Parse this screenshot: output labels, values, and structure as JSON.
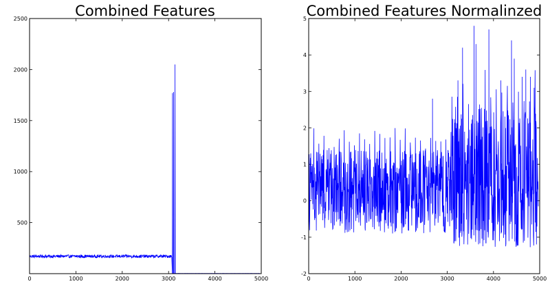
{
  "chart_data": [
    {
      "type": "line",
      "title": "Combined Features",
      "xlabel": "",
      "ylabel": "",
      "xlim": [
        0,
        5000
      ],
      "ylim": [
        0,
        2500
      ],
      "xticks": [
        "0",
        "1000",
        "2000",
        "3000",
        "4000",
        "5000"
      ],
      "yticks": [
        "500",
        "1000",
        "1500",
        "2000",
        "2500"
      ],
      "grid": false,
      "color": "#0000ff",
      "series": [
        {
          "description": "~5000 feature values; ~170 (range ~120-200) for x 0-3070, three spikes near x 3080-3150 (~1770, ~1780, ~2050), then ~0 up to x 5000",
          "segments": [
            {
              "x_start": 0,
              "x_end": 3070,
              "level": 170,
              "noise": 30
            },
            {
              "x_start": 3150,
              "x_end": 4970,
              "level": 2,
              "noise": 2
            }
          ],
          "spikes": [
            {
              "x": 3085,
              "y": 1770
            },
            {
              "x": 3110,
              "y": 1780
            },
            {
              "x": 3140,
              "y": 2050
            }
          ]
        }
      ]
    },
    {
      "type": "line",
      "title": "Combined Features Normalinzed",
      "xlabel": "",
      "ylabel": "",
      "xlim": [
        0,
        5000
      ],
      "ylim": [
        -2,
        5
      ],
      "xticks": [
        "0",
        "1000",
        "2000",
        "3000",
        "4000",
        "5000"
      ],
      "yticks": [
        "-2",
        "-1",
        "0",
        "1",
        "2",
        "3",
        "4",
        "5"
      ],
      "grid": false,
      "color": "#0000ff",
      "series": [
        {
          "description": "normalized features; noisy band ~-0.5 to 1.5 with periodic peaks ~2 for x 0-3100, wider band ~-1 to 3 with peaks up to ~4.8 for x 3100-4970",
          "segments": [
            {
              "x_start": 0,
              "x_end": 3100,
              "low": -0.6,
              "high": 1.4,
              "peak_every": 110,
              "peak_max": 2.0
            },
            {
              "x_start": 3100,
              "x_end": 4970,
              "low": -1.0,
              "high": 2.6,
              "peak_every": 120,
              "peak_max": 3.6
            }
          ],
          "peaks": [
            {
              "x": 2680,
              "y": 2.8
            },
            {
              "x": 3230,
              "y": 3.3
            },
            {
              "x": 3330,
              "y": 4.2
            },
            {
              "x": 3580,
              "y": 4.8
            },
            {
              "x": 3620,
              "y": 4.3
            },
            {
              "x": 3900,
              "y": 4.7
            },
            {
              "x": 4160,
              "y": 3.3
            },
            {
              "x": 4390,
              "y": 4.4
            },
            {
              "x": 4450,
              "y": 3.9
            },
            {
              "x": 4620,
              "y": 3.4
            },
            {
              "x": 4700,
              "y": 3.6
            },
            {
              "x": 4800,
              "y": 3.4
            },
            {
              "x": 4880,
              "y": 3.1
            }
          ]
        }
      ]
    }
  ]
}
